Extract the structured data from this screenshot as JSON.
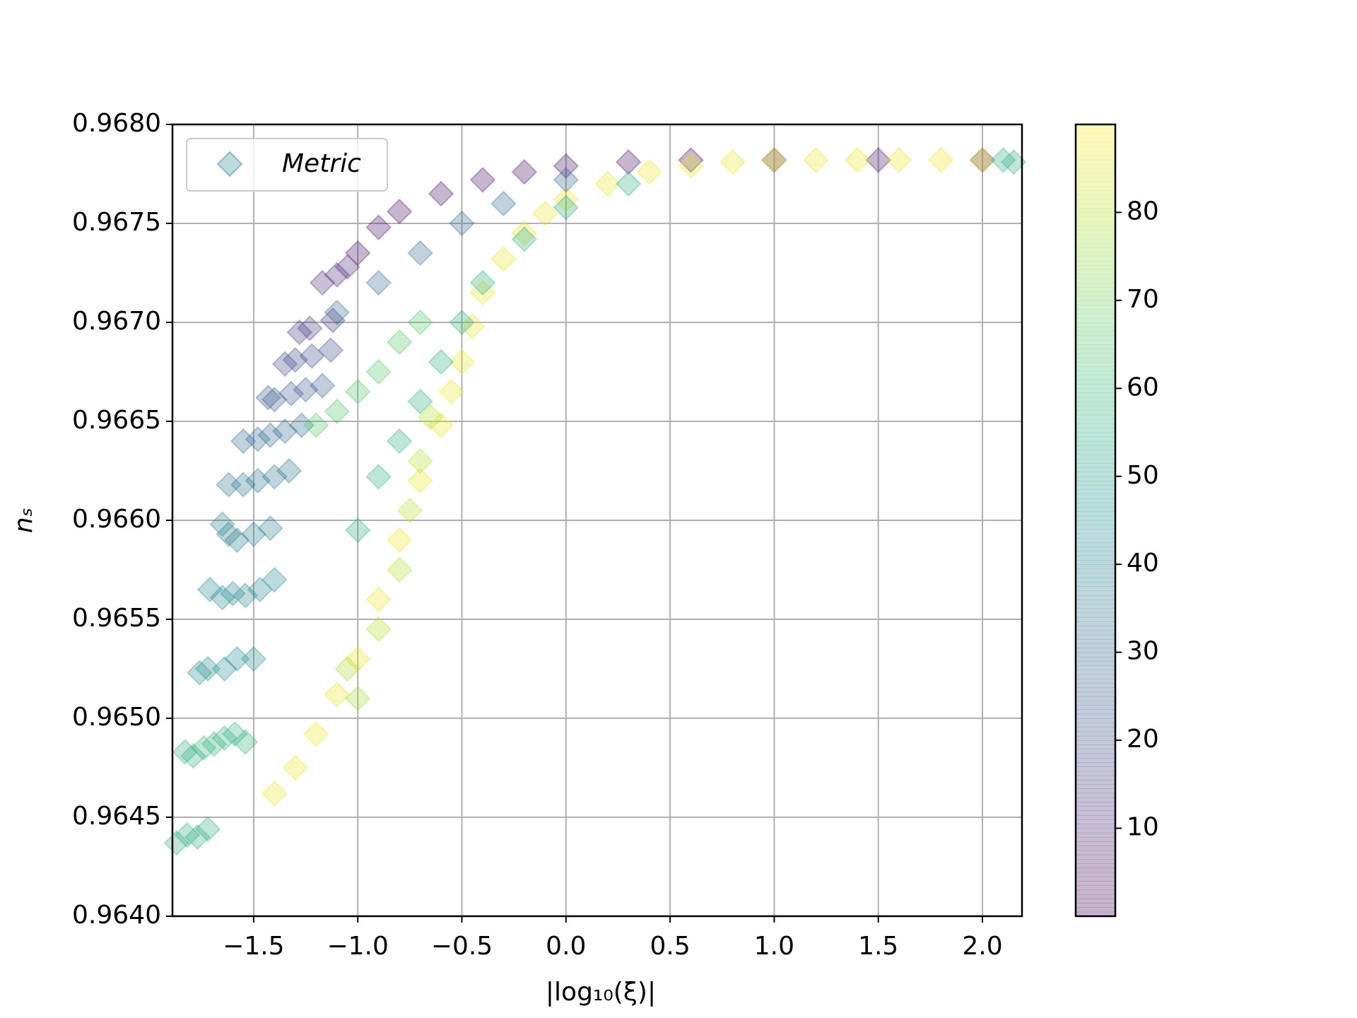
{
  "chart_data": {
    "type": "scatter",
    "xlabel": "|log₁₀(ξ)|",
    "ylabel": "nₛ",
    "xlim": [
      -1.89,
      2.19
    ],
    "ylim": [
      0.964,
      0.968
    ],
    "xticks": [
      {
        "value": -1.5,
        "label": "−1.5"
      },
      {
        "value": -1.0,
        "label": "−1.0"
      },
      {
        "value": -0.5,
        "label": "−0.5"
      },
      {
        "value": 0.0,
        "label": "0.0"
      },
      {
        "value": 0.5,
        "label": "0.5"
      },
      {
        "value": 1.0,
        "label": "1.0"
      },
      {
        "value": 1.5,
        "label": "1.5"
      },
      {
        "value": 2.0,
        "label": "2.0"
      }
    ],
    "yticks": [
      {
        "value": 0.964,
        "label": "0.9640"
      },
      {
        "value": 0.9645,
        "label": "0.9645"
      },
      {
        "value": 0.965,
        "label": "0.9650"
      },
      {
        "value": 0.9655,
        "label": "0.9655"
      },
      {
        "value": 0.966,
        "label": "0.9660"
      },
      {
        "value": 0.9665,
        "label": "0.9665"
      },
      {
        "value": 0.967,
        "label": "0.9670"
      },
      {
        "value": 0.9675,
        "label": "0.9675"
      },
      {
        "value": 0.968,
        "label": "0.9680"
      }
    ],
    "grid": true,
    "legend": "upper left",
    "colorbar": {
      "colormap": "viridis",
      "lim": [
        0,
        90
      ],
      "ticks": [
        10,
        20,
        30,
        40,
        50,
        60,
        70,
        80
      ]
    },
    "series": [
      {
        "name": "Metric",
        "marker": "diamond",
        "alpha": 0.3,
        "x": [
          -1.87,
          -1.82,
          -1.77,
          -1.72,
          -1.83,
          -1.79,
          -1.74,
          -1.69,
          -1.64,
          -1.59,
          -1.54,
          -1.76,
          -1.72,
          -1.64,
          -1.58,
          -1.5,
          -1.71,
          -1.65,
          -1.6,
          -1.54,
          -1.47,
          -1.4,
          -1.65,
          -1.62,
          -1.58,
          -1.5,
          -1.42,
          -1.62,
          -1.55,
          -1.48,
          -1.4,
          -1.33,
          -1.55,
          -1.48,
          -1.42,
          -1.35,
          -1.27,
          -1.43,
          -1.4,
          -1.32,
          -1.25,
          -1.17,
          -1.35,
          -1.3,
          -1.22,
          -1.13,
          -1.28,
          -1.23,
          -1.12,
          -1.17,
          -1.1,
          -1.05,
          -1.0,
          -0.9,
          -0.8,
          -0.6,
          -0.4,
          -0.2,
          0.0,
          0.3,
          0.6,
          1.0,
          1.5,
          2.0,
          -1.4,
          -1.3,
          -1.2,
          -1.1,
          -1.0,
          -0.9,
          -0.8,
          -0.7,
          -0.6,
          -0.55,
          -0.5,
          -0.45,
          -0.4,
          -0.3,
          -0.2,
          -0.1,
          0.0,
          0.2,
          0.4,
          0.6,
          0.8,
          1.0,
          1.2,
          1.4,
          1.6,
          1.8,
          2.0,
          -1.0,
          -0.9,
          -0.8,
          -0.7,
          -0.6,
          -0.5,
          -0.4,
          -0.2,
          0.0,
          0.3,
          2.1,
          2.15,
          -1.2,
          -1.1,
          -1.0,
          -0.9,
          -0.8,
          -0.7,
          -1.1,
          -0.9,
          -0.7,
          -0.5,
          -0.3,
          0.0,
          -0.9,
          -0.8,
          -0.75,
          -0.7,
          -0.65,
          -1.0,
          -1.05
        ],
        "values": [
          0.96437,
          0.96441,
          0.9644,
          0.96444,
          0.96483,
          0.96481,
          0.96485,
          0.96487,
          0.9649,
          0.96492,
          0.96488,
          0.96523,
          0.96525,
          0.96525,
          0.9653,
          0.9653,
          0.96565,
          0.96561,
          0.96563,
          0.96562,
          0.96565,
          0.9657,
          0.96598,
          0.96593,
          0.9659,
          0.96593,
          0.96596,
          0.96618,
          0.96618,
          0.9662,
          0.96622,
          0.96625,
          0.9664,
          0.96641,
          0.96643,
          0.96645,
          0.96648,
          0.96662,
          0.96661,
          0.96664,
          0.96666,
          0.96668,
          0.96679,
          0.96681,
          0.96683,
          0.96686,
          0.96695,
          0.96697,
          0.96701,
          0.9672,
          0.96724,
          0.96728,
          0.96735,
          0.96748,
          0.96756,
          0.96765,
          0.96772,
          0.96776,
          0.96779,
          0.96781,
          0.96782,
          0.96782,
          0.96782,
          0.96782,
          0.96462,
          0.96475,
          0.96492,
          0.96512,
          0.9653,
          0.9656,
          0.9659,
          0.9662,
          0.96648,
          0.96665,
          0.9668,
          0.96698,
          0.96715,
          0.96732,
          0.96745,
          0.96755,
          0.96762,
          0.9677,
          0.96776,
          0.96779,
          0.96781,
          0.96782,
          0.96782,
          0.96782,
          0.96782,
          0.96782,
          0.96782,
          0.96595,
          0.96622,
          0.9664,
          0.9666,
          0.9668,
          0.967,
          0.9672,
          0.96742,
          0.96758,
          0.9677,
          0.96782,
          0.96781,
          0.96648,
          0.96655,
          0.96665,
          0.96675,
          0.9669,
          0.967,
          0.96705,
          0.9672,
          0.96735,
          0.9675,
          0.9676,
          0.96772,
          0.96545,
          0.96575,
          0.96605,
          0.9663,
          0.96652,
          0.9651,
          0.96525
        ],
        "c": [
          55,
          55,
          55,
          55,
          57,
          57,
          57,
          57,
          57,
          57,
          57,
          45,
          45,
          45,
          45,
          45,
          42,
          42,
          42,
          42,
          42,
          42,
          38,
          38,
          38,
          38,
          38,
          35,
          35,
          35,
          35,
          35,
          30,
          30,
          30,
          30,
          30,
          25,
          25,
          25,
          25,
          25,
          20,
          20,
          20,
          20,
          15,
          15,
          15,
          10,
          10,
          10,
          3,
          3,
          3,
          3,
          3,
          3,
          3,
          3,
          3,
          3,
          3,
          3,
          87,
          87,
          87,
          87,
          87,
          87,
          87,
          87,
          87,
          87,
          87,
          87,
          87,
          87,
          87,
          87,
          87,
          87,
          87,
          87,
          87,
          87,
          87,
          87,
          87,
          87,
          87,
          55,
          55,
          55,
          55,
          55,
          55,
          55,
          55,
          55,
          55,
          55,
          55,
          65,
          65,
          65,
          65,
          65,
          65,
          30,
          30,
          30,
          30,
          30,
          30,
          80,
          80,
          80,
          80,
          80,
          78,
          78
        ]
      }
    ]
  }
}
